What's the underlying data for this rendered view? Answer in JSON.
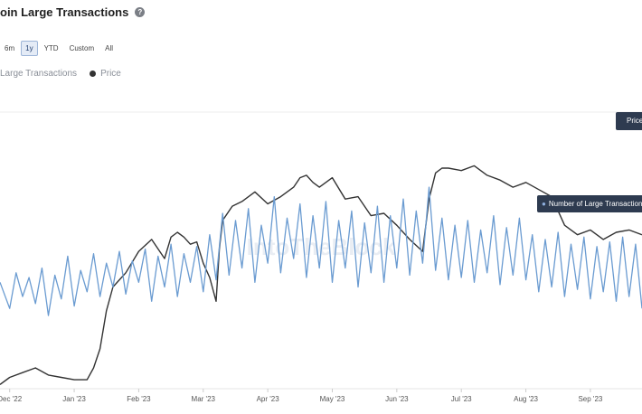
{
  "header": {
    "title": "oin Large Transactions",
    "help_icon": "question-circle-icon"
  },
  "ranges": {
    "items": [
      "6m",
      "1y",
      "YTD",
      "Custom",
      "All"
    ],
    "selected": "1y"
  },
  "legend": {
    "items": [
      {
        "label": "Large Transactions",
        "color": "#6a9bd1"
      },
      {
        "label": "Price",
        "color": "#333333"
      }
    ]
  },
  "watermark": "IntoTheBlock",
  "tooltips": {
    "price_label": "Price",
    "transactions_label": "Number of Large Transactions"
  },
  "chart_data": {
    "type": "line",
    "x_ticks": [
      "Dec '22",
      "Jan '23",
      "Feb '23",
      "Mar '23",
      "Apr '23",
      "May '23",
      "Jun '23",
      "Jul '23",
      "Aug '23",
      "Sep '23"
    ],
    "x_tick_positions": [
      0.0,
      1.0,
      2.0,
      3.0,
      4.0,
      5.0,
      6.0,
      7.0,
      8.0,
      9.0
    ],
    "x_range": [
      -0.15,
      9.8
    ],
    "series": [
      {
        "name": "Price",
        "color": "#333333",
        "y_range": [
          0,
          100
        ],
        "x": [
          -0.15,
          0.0,
          0.2,
          0.4,
          0.6,
          0.8,
          1.0,
          1.2,
          1.3,
          1.4,
          1.5,
          1.6,
          1.7,
          1.8,
          2.0,
          2.2,
          2.4,
          2.5,
          2.6,
          2.7,
          2.8,
          2.9,
          3.0,
          3.1,
          3.2,
          3.25,
          3.3,
          3.45,
          3.6,
          3.8,
          4.0,
          4.2,
          4.4,
          4.5,
          4.6,
          4.7,
          4.8,
          5.0,
          5.2,
          5.4,
          5.6,
          5.8,
          6.0,
          6.2,
          6.4,
          6.5,
          6.6,
          6.7,
          6.8,
          7.0,
          7.2,
          7.4,
          7.6,
          7.8,
          8.0,
          8.2,
          8.4,
          8.6,
          8.8,
          9.0,
          9.2,
          9.4,
          9.6,
          9.8
        ],
        "values": [
          1,
          4,
          6,
          8,
          5,
          4,
          3,
          3,
          8,
          16,
          32,
          42,
          45,
          48,
          57,
          62,
          54,
          63,
          65,
          63,
          60,
          61,
          52,
          46,
          36,
          58,
          70,
          76,
          78,
          82,
          77,
          80,
          84,
          88,
          89,
          86,
          84,
          88,
          79,
          80,
          72,
          73,
          68,
          62,
          57,
          79,
          90,
          92,
          92,
          91,
          93,
          89,
          87,
          84,
          86,
          83,
          80,
          68,
          64,
          66,
          62,
          65,
          66,
          64
        ]
      },
      {
        "name": "Large Transactions",
        "color": "#6a9bd1",
        "y_range": [
          0,
          100
        ],
        "x": [
          -0.15,
          0.0,
          0.1,
          0.2,
          0.3,
          0.4,
          0.5,
          0.6,
          0.7,
          0.8,
          0.9,
          1.0,
          1.1,
          1.2,
          1.3,
          1.4,
          1.5,
          1.6,
          1.7,
          1.8,
          1.9,
          2.0,
          2.1,
          2.2,
          2.3,
          2.4,
          2.5,
          2.6,
          2.7,
          2.8,
          2.9,
          3.0,
          3.1,
          3.2,
          3.3,
          3.4,
          3.5,
          3.6,
          3.7,
          3.8,
          3.9,
          4.0,
          4.1,
          4.2,
          4.3,
          4.4,
          4.5,
          4.6,
          4.7,
          4.8,
          4.9,
          5.0,
          5.1,
          5.2,
          5.3,
          5.4,
          5.5,
          5.6,
          5.7,
          5.8,
          5.9,
          6.0,
          6.1,
          6.2,
          6.3,
          6.4,
          6.5,
          6.6,
          6.7,
          6.8,
          6.9,
          7.0,
          7.1,
          7.2,
          7.3,
          7.4,
          7.5,
          7.6,
          7.7,
          7.8,
          7.9,
          8.0,
          8.1,
          8.2,
          8.3,
          8.4,
          8.5,
          8.6,
          8.7,
          8.8,
          8.9,
          9.0,
          9.1,
          9.2,
          9.3,
          9.4,
          9.5,
          9.6,
          9.7,
          9.8
        ],
        "values": [
          44,
          33,
          48,
          38,
          46,
          35,
          50,
          30,
          47,
          37,
          55,
          34,
          49,
          40,
          56,
          38,
          52,
          42,
          57,
          39,
          53,
          44,
          58,
          36,
          55,
          42,
          60,
          38,
          56,
          44,
          59,
          40,
          64,
          45,
          73,
          47,
          70,
          50,
          75,
          44,
          68,
          52,
          80,
          48,
          71,
          54,
          77,
          46,
          72,
          50,
          78,
          44,
          70,
          50,
          74,
          42,
          69,
          48,
          76,
          44,
          72,
          50,
          79,
          47,
          74,
          52,
          84,
          49,
          71,
          45,
          68,
          46,
          70,
          44,
          66,
          48,
          72,
          43,
          67,
          47,
          71,
          45,
          64,
          40,
          62,
          42,
          65,
          38,
          60,
          41,
          63,
          37,
          59,
          40,
          61,
          36,
          63,
          38,
          60,
          33
        ]
      }
    ]
  }
}
